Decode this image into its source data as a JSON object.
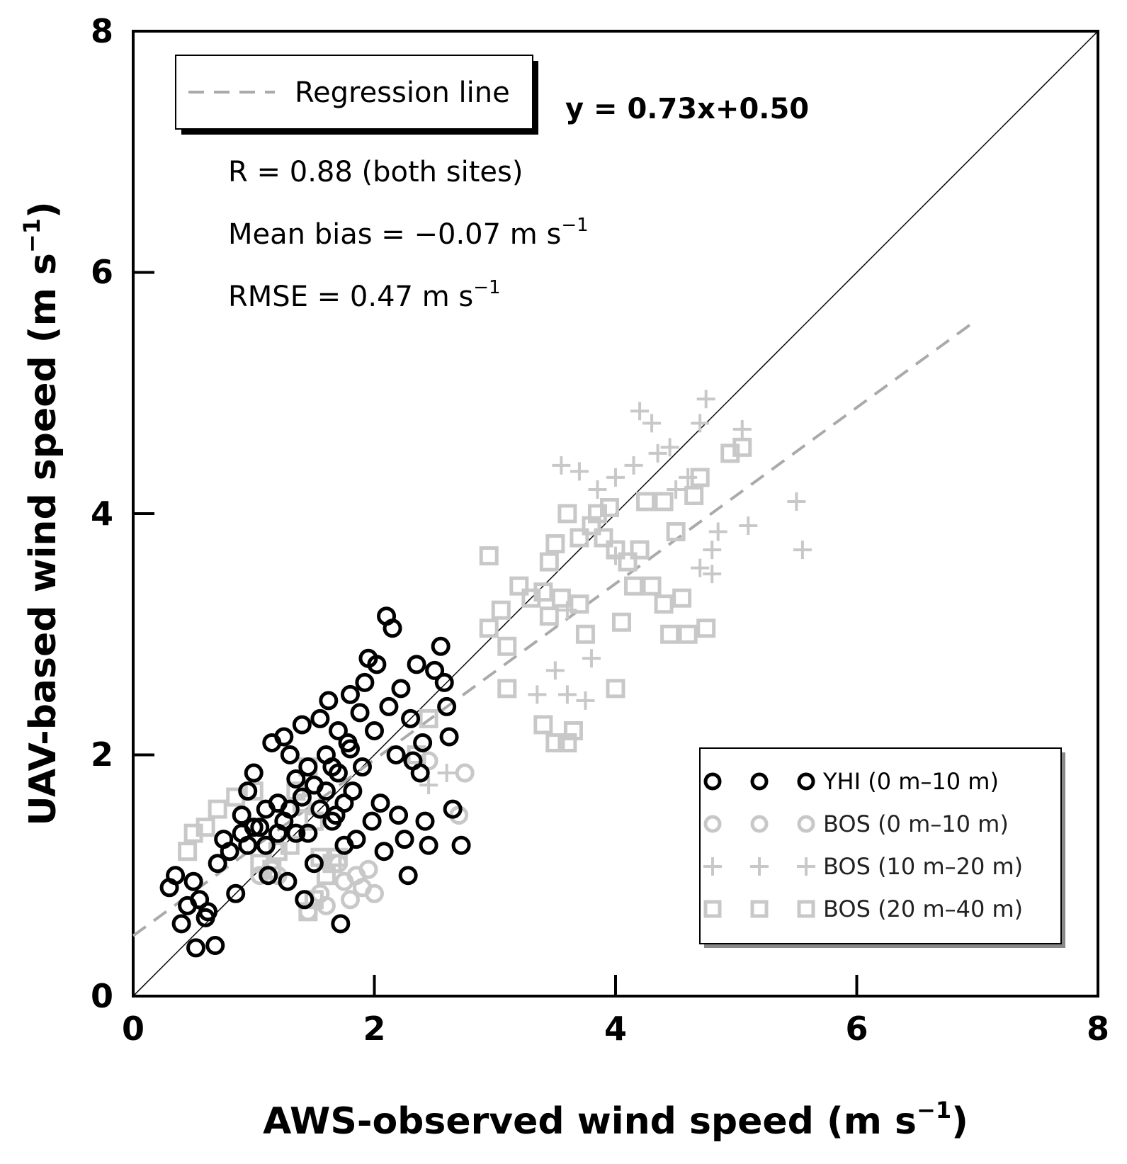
{
  "chart_data": {
    "type": "scatter",
    "xlabel": "AWS-observed wind speed (m s",
    "xlabel_sup": "−1",
    "xlabel_end": ")",
    "ylabel": "UAV-based wind speed (m s",
    "ylabel_sup": "−1",
    "ylabel_end": ")",
    "xlim": [
      0,
      8
    ],
    "ylim": [
      0,
      8
    ],
    "xticks": [
      "0",
      "2",
      "4",
      "6",
      "8"
    ],
    "yticks": [
      "0",
      "2",
      "4",
      "6",
      "8"
    ],
    "one_to_one_line": true,
    "regression": {
      "label": "Regression line",
      "slope": 0.73,
      "intercept": 0.5,
      "x_range": [
        0,
        7.0
      ],
      "equation": "y = 0.73x+0.50",
      "color": "#aaaaaa"
    },
    "stats": {
      "r": "R = 0.88 (both sites)",
      "bias": "Mean bias = −0.07 m s",
      "bias_sup": "−1",
      "rmse": "RMSE = 0.47 m s",
      "rmse_sup": "−1"
    },
    "series": [
      {
        "name": "YHI (0 m–10 m)",
        "marker": "circle",
        "color": "#000000",
        "points": [
          [
            0.3,
            0.9
          ],
          [
            0.35,
            1.0
          ],
          [
            0.4,
            0.6
          ],
          [
            0.45,
            0.75
          ],
          [
            0.5,
            0.95
          ],
          [
            0.52,
            0.4
          ],
          [
            0.55,
            0.8
          ],
          [
            0.6,
            0.65
          ],
          [
            0.62,
            0.7
          ],
          [
            0.68,
            0.42
          ],
          [
            0.7,
            1.1
          ],
          [
            0.75,
            1.3
          ],
          [
            0.8,
            1.2
          ],
          [
            0.85,
            0.85
          ],
          [
            0.9,
            1.5
          ],
          [
            0.95,
            1.7
          ],
          [
            1.0,
            1.85
          ],
          [
            1.05,
            1.4
          ],
          [
            1.1,
            1.25
          ],
          [
            1.12,
            1.0
          ],
          [
            1.15,
            2.1
          ],
          [
            1.2,
            1.6
          ],
          [
            1.25,
            2.15
          ],
          [
            1.28,
            0.95
          ],
          [
            1.3,
            2.0
          ],
          [
            1.35,
            1.8
          ],
          [
            1.4,
            2.25
          ],
          [
            1.42,
            0.8
          ],
          [
            1.45,
            1.35
          ],
          [
            1.5,
            1.1
          ],
          [
            1.55,
            2.3
          ],
          [
            1.6,
            2.0
          ],
          [
            1.62,
            2.45
          ],
          [
            1.65,
            1.9
          ],
          [
            1.68,
            1.5
          ],
          [
            1.7,
            2.2
          ],
          [
            1.72,
            0.6
          ],
          [
            1.75,
            1.6
          ],
          [
            1.78,
            2.1
          ],
          [
            1.8,
            2.5
          ],
          [
            1.82,
            1.7
          ],
          [
            1.85,
            1.3
          ],
          [
            1.88,
            2.35
          ],
          [
            1.9,
            1.9
          ],
          [
            1.92,
            2.6
          ],
          [
            1.95,
            2.8
          ],
          [
            1.98,
            1.45
          ],
          [
            2.0,
            2.2
          ],
          [
            2.02,
            2.75
          ],
          [
            2.05,
            1.6
          ],
          [
            2.08,
            1.2
          ],
          [
            2.1,
            3.15
          ],
          [
            2.12,
            2.4
          ],
          [
            2.15,
            3.05
          ],
          [
            2.18,
            2.0
          ],
          [
            2.2,
            1.5
          ],
          [
            2.22,
            2.55
          ],
          [
            2.25,
            1.3
          ],
          [
            2.28,
            1.0
          ],
          [
            2.3,
            2.3
          ],
          [
            2.32,
            1.95
          ],
          [
            2.35,
            2.75
          ],
          [
            2.38,
            1.85
          ],
          [
            2.4,
            2.1
          ],
          [
            2.42,
            1.45
          ],
          [
            2.45,
            1.25
          ],
          [
            2.5,
            2.7
          ],
          [
            2.55,
            2.9
          ],
          [
            2.58,
            2.6
          ],
          [
            2.6,
            2.4
          ],
          [
            2.62,
            2.15
          ],
          [
            2.65,
            1.55
          ],
          [
            2.72,
            1.25
          ],
          [
            1.5,
            1.75
          ],
          [
            1.55,
            1.55
          ],
          [
            1.6,
            1.7
          ],
          [
            1.65,
            1.45
          ],
          [
            1.7,
            1.85
          ],
          [
            1.75,
            1.25
          ],
          [
            1.8,
            2.05
          ],
          [
            1.3,
            1.55
          ],
          [
            1.35,
            1.35
          ],
          [
            1.4,
            1.65
          ],
          [
            1.45,
            1.9
          ],
          [
            1.2,
            1.35
          ],
          [
            1.25,
            1.45
          ],
          [
            1.1,
            1.55
          ],
          [
            1.0,
            1.4
          ],
          [
            0.95,
            1.25
          ],
          [
            0.9,
            1.35
          ]
        ]
      },
      {
        "name": "BOS (0 m–10 m)",
        "marker": "circle",
        "color": "#c8c8c8",
        "points": [
          [
            1.05,
            1.0
          ],
          [
            1.15,
            1.05
          ],
          [
            1.2,
            1.0
          ],
          [
            1.45,
            0.7
          ],
          [
            1.55,
            0.85
          ],
          [
            1.7,
            1.1
          ],
          [
            1.75,
            0.95
          ],
          [
            1.8,
            0.8
          ],
          [
            1.9,
            0.9
          ],
          [
            1.95,
            1.05
          ],
          [
            2.45,
            1.95
          ],
          [
            2.7,
            1.5
          ],
          [
            2.75,
            1.85
          ],
          [
            1.6,
            0.75
          ],
          [
            1.85,
            1.0
          ],
          [
            2.0,
            0.85
          ]
        ]
      },
      {
        "name": "BOS (10 m–20 m)",
        "marker": "plus",
        "color": "#c8c8c8",
        "points": [
          [
            2.45,
            1.75
          ],
          [
            2.6,
            1.85
          ],
          [
            3.35,
            2.5
          ],
          [
            3.5,
            2.7
          ],
          [
            3.6,
            2.5
          ],
          [
            3.75,
            2.45
          ],
          [
            3.8,
            2.8
          ],
          [
            3.6,
            3.2
          ],
          [
            3.55,
            4.4
          ],
          [
            3.7,
            4.35
          ],
          [
            3.85,
            4.2
          ],
          [
            4.0,
            4.3
          ],
          [
            4.15,
            4.4
          ],
          [
            4.2,
            4.85
          ],
          [
            4.3,
            4.75
          ],
          [
            4.35,
            4.5
          ],
          [
            4.45,
            4.55
          ],
          [
            4.5,
            4.2
          ],
          [
            4.6,
            4.3
          ],
          [
            4.7,
            4.75
          ],
          [
            4.7,
            3.55
          ],
          [
            4.8,
            3.7
          ],
          [
            4.8,
            3.5
          ],
          [
            4.85,
            3.85
          ],
          [
            5.1,
            3.9
          ],
          [
            5.5,
            4.1
          ],
          [
            5.55,
            3.7
          ],
          [
            5.05,
            4.7
          ],
          [
            4.75,
            4.95
          ],
          [
            4.0,
            3.65
          ]
        ]
      },
      {
        "name": "BOS (20 m–40 m)",
        "marker": "square",
        "color": "#c8c8c8",
        "points": [
          [
            0.45,
            1.2
          ],
          [
            0.5,
            1.35
          ],
          [
            0.6,
            1.4
          ],
          [
            0.7,
            1.55
          ],
          [
            0.85,
            1.65
          ],
          [
            1.0,
            1.7
          ],
          [
            1.05,
            1.1
          ],
          [
            1.15,
            1.05
          ],
          [
            1.2,
            1.2
          ],
          [
            1.3,
            1.25
          ],
          [
            1.35,
            1.7
          ],
          [
            1.4,
            1.6
          ],
          [
            1.45,
            1.9
          ],
          [
            1.5,
            1.45
          ],
          [
            1.55,
            1.15
          ],
          [
            1.6,
            1.0
          ],
          [
            1.65,
            1.1
          ],
          [
            1.7,
            1.15
          ],
          [
            1.45,
            0.7
          ],
          [
            1.5,
            0.8
          ],
          [
            2.35,
            2.0
          ],
          [
            2.45,
            2.3
          ],
          [
            2.95,
            3.65
          ],
          [
            2.95,
            3.05
          ],
          [
            3.05,
            3.2
          ],
          [
            3.1,
            2.9
          ],
          [
            3.1,
            2.55
          ],
          [
            3.2,
            3.4
          ],
          [
            3.3,
            3.3
          ],
          [
            3.4,
            3.35
          ],
          [
            3.45,
            3.6
          ],
          [
            3.45,
            3.15
          ],
          [
            3.5,
            3.75
          ],
          [
            3.55,
            3.3
          ],
          [
            3.6,
            2.1
          ],
          [
            3.65,
            2.2
          ],
          [
            3.4,
            2.25
          ],
          [
            3.5,
            2.1
          ],
          [
            3.7,
            3.25
          ],
          [
            3.75,
            3.0
          ],
          [
            3.8,
            3.9
          ],
          [
            3.85,
            4.0
          ],
          [
            3.9,
            3.8
          ],
          [
            3.95,
            4.05
          ],
          [
            4.0,
            3.7
          ],
          [
            4.05,
            3.1
          ],
          [
            4.1,
            3.6
          ],
          [
            4.15,
            3.4
          ],
          [
            4.2,
            3.7
          ],
          [
            4.25,
            4.1
          ],
          [
            4.3,
            3.4
          ],
          [
            4.4,
            4.1
          ],
          [
            4.5,
            3.85
          ],
          [
            4.55,
            3.3
          ],
          [
            4.6,
            3.0
          ],
          [
            4.65,
            4.15
          ],
          [
            4.7,
            4.3
          ],
          [
            4.75,
            3.05
          ],
          [
            4.95,
            4.5
          ],
          [
            5.05,
            4.55
          ],
          [
            4.0,
            2.55
          ],
          [
            3.7,
            3.8
          ],
          [
            3.6,
            4.0
          ],
          [
            4.45,
            3.0
          ],
          [
            4.4,
            3.25
          ]
        ]
      }
    ]
  }
}
